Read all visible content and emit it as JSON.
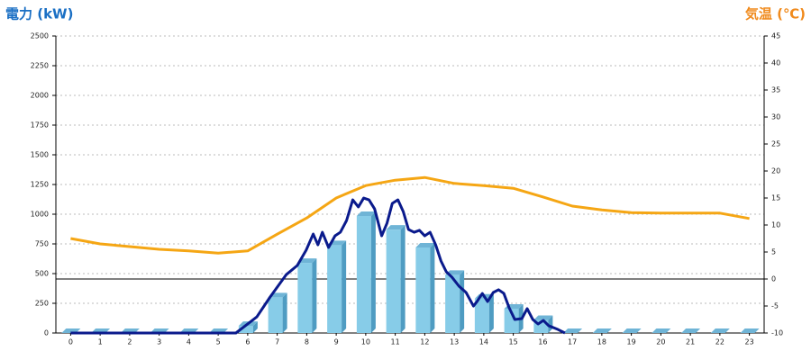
{
  "chart_data": {
    "type": "bar",
    "y_title": "電力 (kW)",
    "y2_title": "気温 (℃)",
    "categories": [
      "0",
      "1",
      "2",
      "3",
      "4",
      "5",
      "6",
      "7",
      "8",
      "9",
      "10",
      "11",
      "12",
      "13",
      "14",
      "15",
      "16",
      "17",
      "18",
      "19",
      "20",
      "21",
      "22",
      "23"
    ],
    "series": [
      {
        "type": "bar",
        "color": "#87cce8",
        "values": [
          0,
          0,
          0,
          0,
          0,
          0,
          60,
          300,
          590,
          740,
          985,
          870,
          720,
          490,
          290,
          205,
          110,
          0,
          0,
          0,
          0,
          0,
          0,
          0
        ]
      },
      {
        "type": "line",
        "color": "#0a1a8c",
        "x": [
          0,
          5.6,
          6.0,
          6.31,
          6.76,
          7.31,
          7.68,
          7.98,
          8.22,
          8.38,
          8.53,
          8.74,
          8.96,
          9.14,
          9.35,
          9.56,
          9.75,
          9.93,
          10.11,
          10.3,
          10.54,
          10.72,
          10.9,
          11.09,
          11.27,
          11.45,
          11.64,
          11.82,
          12.0,
          12.18,
          12.37,
          12.55,
          12.73,
          12.92,
          13.16,
          13.4,
          13.65,
          13.77,
          13.95,
          14.13,
          14.32,
          14.5,
          14.68,
          14.86,
          15.05,
          15.29,
          15.47,
          15.66,
          15.84,
          16.02,
          16.2,
          16.51,
          16.75
        ],
        "values": [
          0,
          0,
          76,
          136,
          303,
          492,
          568,
          697,
          833,
          742,
          848,
          720,
          818,
          848,
          947,
          1121,
          1061,
          1136,
          1121,
          1045,
          818,
          924,
          1091,
          1121,
          1023,
          871,
          848,
          864,
          818,
          848,
          742,
          606,
          515,
          470,
          394,
          341,
          227,
          265,
          333,
          265,
          341,
          364,
          333,
          212,
          114,
          121,
          205,
          114,
          76,
          106,
          61,
          30,
          0
        ]
      },
      {
        "type": "line",
        "axis": "y2",
        "color": "#f5a614",
        "values": [
          7.5,
          6.5,
          6,
          5.5,
          5.2,
          4.8,
          5.2,
          8.3,
          11.3,
          15,
          17.3,
          18.3,
          18.8,
          17.7,
          17.3,
          16.8,
          15.2,
          13.5,
          12.8,
          12.3,
          12.2,
          12.2,
          12.2,
          11.2
        ]
      }
    ],
    "ylim": [
      0,
      2500
    ],
    "yticks": [
      0,
      250,
      500,
      750,
      1000,
      1250,
      1500,
      1750,
      2000,
      2250,
      2500
    ],
    "y2lim": [
      -10,
      45
    ],
    "y2ticks": [
      -10,
      -5,
      0,
      5,
      10,
      15,
      20,
      25,
      30,
      35,
      40,
      45
    ],
    "reference_line": {
      "axis": "y2",
      "value": 0
    },
    "grid": true
  }
}
